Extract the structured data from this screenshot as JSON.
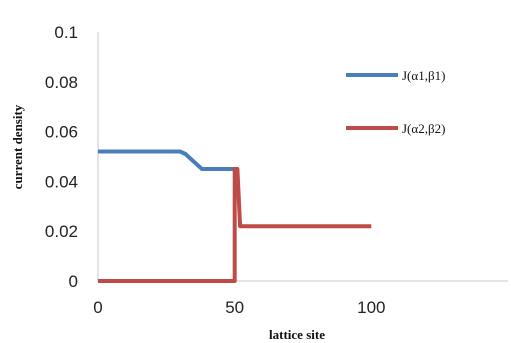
{
  "chart_data": {
    "type": "line",
    "title": "",
    "xlabel": "lattice site",
    "ylabel": "current density",
    "xlim": [
      0,
      150
    ],
    "ylim": [
      0,
      0.1
    ],
    "x_ticks": [
      0,
      50,
      100
    ],
    "x_tick_labels": [
      "0",
      "50",
      "100"
    ],
    "y_ticks": [
      0,
      0.02,
      0.04,
      0.06,
      0.08,
      0.1
    ],
    "y_tick_labels": [
      "0",
      "0.02",
      "0.04",
      "0.06",
      "0.08",
      "0.1"
    ],
    "grid": false,
    "legend_position": "right",
    "series": [
      {
        "name": "J(α1,β1)",
        "color": "#4a7ebb",
        "x": [
          0,
          30,
          32,
          34,
          36,
          38,
          40,
          50
        ],
        "y": [
          0.052,
          0.052,
          0.051,
          0.049,
          0.047,
          0.045,
          0.045,
          0.045
        ]
      },
      {
        "name": "J(α2,β2)",
        "color": "#be4b48",
        "x": [
          0,
          50,
          50,
          51,
          52,
          54,
          100
        ],
        "y": [
          0,
          0,
          0.045,
          0.045,
          0.022,
          0.022,
          0.022
        ]
      }
    ]
  }
}
